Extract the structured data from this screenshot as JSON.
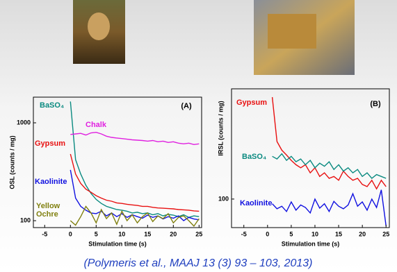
{
  "chart_data": [
    {
      "type": "line",
      "title": "(A)",
      "ylabel": "OSL (counts / mg)",
      "xlabel": "Stimulation time (s)",
      "log_y": true,
      "xlim": [
        -7.2,
        25.5
      ],
      "ylim": [
        85,
        1830
      ],
      "xticks": [
        -5,
        0,
        5,
        10,
        15,
        20,
        25
      ],
      "yticks": [
        100,
        1000
      ],
      "x": [
        0,
        1,
        2,
        3,
        4,
        5,
        6,
        7,
        8,
        9,
        10,
        11,
        12,
        13,
        14,
        15,
        16,
        17,
        18,
        19,
        20,
        21,
        22,
        23,
        24,
        25
      ],
      "series": [
        {
          "name": "BaSO₄",
          "color": "#0a8a80",
          "values": [
            1650,
            420,
            300,
            230,
            190,
            165,
            150,
            140,
            135,
            130,
            128,
            125,
            120,
            122,
            118,
            120,
            115,
            118,
            112,
            116,
            114,
            110,
            115,
            108,
            112,
            110
          ]
        },
        {
          "name": "Chalk",
          "color": "#e020e0",
          "values": [
            760,
            770,
            780,
            750,
            790,
            800,
            770,
            730,
            710,
            700,
            690,
            680,
            670,
            665,
            660,
            650,
            660,
            640,
            650,
            630,
            640,
            620,
            610,
            620,
            600,
            610
          ]
        },
        {
          "name": "Gypsum",
          "color": "#e81010",
          "values": [
            480,
            300,
            240,
            210,
            195,
            180,
            170,
            162,
            158,
            152,
            150,
            147,
            145,
            143,
            140,
            140,
            137,
            135,
            134,
            133,
            132,
            130,
            129,
            128,
            126,
            125
          ]
        },
        {
          "name": "Kaolinite",
          "color": "#1010e0",
          "values": [
            330,
            170,
            140,
            128,
            120,
            118,
            125,
            112,
            120,
            110,
            118,
            108,
            115,
            110,
            106,
            114,
            108,
            112,
            104,
            110,
            106,
            112,
            100,
            108,
            104,
            102
          ]
        },
        {
          "name": "Yellow Ochre",
          "color": "#808010",
          "values": [
            100,
            90,
            110,
            140,
            120,
            95,
            130,
            105,
            120,
            92,
            125,
            100,
            115,
            95,
            110,
            120,
            98,
            112,
            105,
            118,
            95,
            108,
            112,
            100,
            88,
            105
          ]
        }
      ]
    },
    {
      "type": "line",
      "title": "(B)",
      "ylabel": "IRSL (counts / mg)",
      "xlabel": "Stimulation time (s)",
      "log_y": true,
      "xlim": [
        -7.6,
        25.7
      ],
      "ylim": [
        60,
        720
      ],
      "xticks": [
        -5,
        0,
        5,
        10,
        15,
        20,
        25
      ],
      "yticks": [
        100
      ],
      "x": [
        0,
        1,
        2,
        3,
        4,
        5,
        6,
        7,
        8,
        9,
        10,
        11,
        12,
        13,
        14,
        15,
        16,
        17,
        18,
        19,
        20,
        21,
        22,
        23,
        24,
        25
      ],
      "series": [
        {
          "name": "Gypsum",
          "color": "#e81010",
          "values": [
            null,
            620,
            280,
            240,
            220,
            200,
            185,
            175,
            185,
            160,
            175,
            150,
            160,
            145,
            150,
            140,
            165,
            150,
            140,
            145,
            130,
            125,
            140,
            120,
            140,
            125
          ]
        },
        {
          "name": "BaSO₄",
          "color": "#0a8a80",
          "values": [
            null,
            215,
            205,
            225,
            200,
            215,
            195,
            205,
            185,
            200,
            175,
            190,
            180,
            195,
            170,
            185,
            165,
            175,
            160,
            170,
            150,
            160,
            145,
            155,
            150,
            145
          ]
        },
        {
          "name": "Kaolinite",
          "color": "#1010e0",
          "values": [
            null,
            92,
            84,
            88,
            80,
            95,
            82,
            90,
            86,
            78,
            100,
            85,
            92,
            80,
            96,
            88,
            84,
            90,
            110,
            88,
            95,
            82,
            100,
            86,
            118,
            62
          ]
        }
      ]
    }
  ],
  "citation": "(Polymeris et al., MAAJ 13 (3) 93 – 103, 2013)"
}
